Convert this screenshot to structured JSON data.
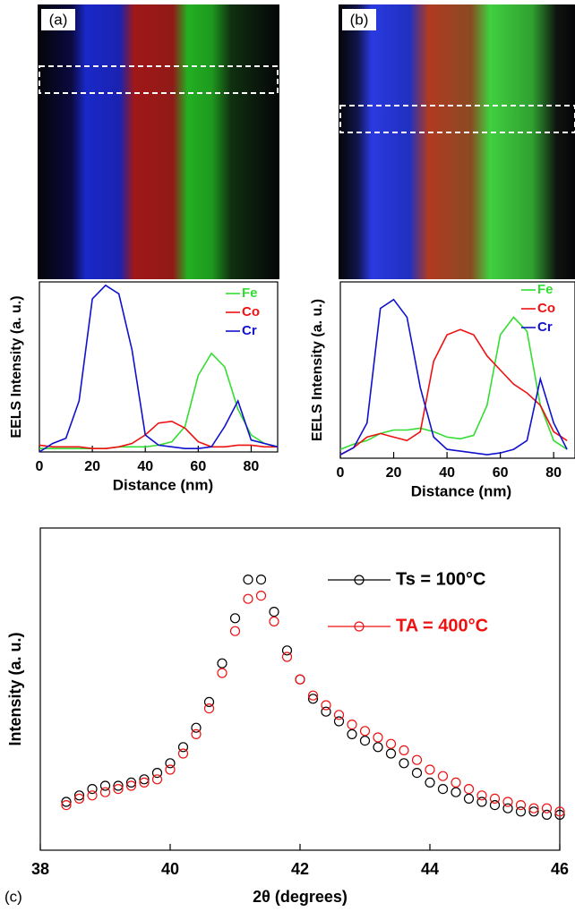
{
  "chart_data": [
    {
      "type": "line",
      "panel_label": "(a)",
      "x_label": "Distance (nm)",
      "y_label": "EELS Intensity (a. u.)",
      "x": [
        0,
        5,
        10,
        15,
        20,
        25,
        30,
        35,
        40,
        45,
        50,
        55,
        60,
        65,
        70,
        75,
        80,
        85,
        90
      ],
      "series": [
        {
          "name": "Fe",
          "color": "#33dd33",
          "values": [
            0.02,
            0.02,
            0.02,
            0.02,
            0.02,
            0.02,
            0.03,
            0.03,
            0.03,
            0.04,
            0.06,
            0.15,
            0.45,
            0.58,
            0.5,
            0.25,
            0.1,
            0.05,
            0.03
          ]
        },
        {
          "name": "Co",
          "color": "#ee1111",
          "values": [
            0.04,
            0.03,
            0.03,
            0.03,
            0.02,
            0.02,
            0.03,
            0.05,
            0.1,
            0.17,
            0.18,
            0.14,
            0.06,
            0.03,
            0.03,
            0.04,
            0.04,
            0.03,
            0.03
          ]
        },
        {
          "name": "Cr",
          "color": "#1111cc",
          "values": [
            0.0,
            0.05,
            0.08,
            0.3,
            0.9,
            0.98,
            0.93,
            0.6,
            0.1,
            0.04,
            0.03,
            0.02,
            0.02,
            0.03,
            0.15,
            0.3,
            0.07,
            0.05,
            0.03
          ]
        }
      ],
      "xlim": [
        0,
        90
      ],
      "xticks": [
        0,
        20,
        40,
        60,
        80
      ],
      "ylim": [
        0,
        1
      ]
    },
    {
      "type": "line",
      "panel_label": "(b)",
      "x_label": "Distance (nm)",
      "y_label": "EELS Intensity (a. u.)",
      "x": [
        0,
        5,
        10,
        15,
        20,
        25,
        30,
        35,
        40,
        45,
        50,
        55,
        60,
        65,
        70,
        75,
        80,
        85
      ],
      "series": [
        {
          "name": "Fe",
          "color": "#33dd33",
          "values": [
            0.05,
            0.08,
            0.1,
            0.14,
            0.16,
            0.16,
            0.17,
            0.15,
            0.12,
            0.11,
            0.13,
            0.3,
            0.7,
            0.8,
            0.72,
            0.3,
            0.1,
            0.05
          ]
        },
        {
          "name": "Co",
          "color": "#ee1111",
          "values": [
            0.02,
            0.06,
            0.12,
            0.14,
            0.12,
            0.1,
            0.15,
            0.55,
            0.7,
            0.73,
            0.7,
            0.58,
            0.5,
            0.42,
            0.37,
            0.3,
            0.15,
            0.1
          ]
        },
        {
          "name": "Cr",
          "color": "#1111cc",
          "values": [
            0.02,
            0.06,
            0.2,
            0.85,
            0.9,
            0.8,
            0.4,
            0.12,
            0.05,
            0.04,
            0.03,
            0.02,
            0.03,
            0.05,
            0.1,
            0.45,
            0.2,
            0.05
          ]
        }
      ],
      "xlim": [
        0,
        88
      ],
      "xticks": [
        0,
        20,
        40,
        60,
        80
      ],
      "ylim": [
        0,
        1
      ]
    },
    {
      "type": "scatter",
      "panel_label": "(c)",
      "x_label": "2θ (degrees)",
      "y_label": "Intensity (a. u.)",
      "x": [
        38.4,
        38.6,
        38.8,
        39.0,
        39.2,
        39.4,
        39.6,
        39.8,
        40.0,
        40.2,
        40.4,
        40.6,
        40.8,
        41.0,
        41.2,
        41.4,
        41.6,
        41.8,
        42.0,
        42.2,
        42.4,
        42.6,
        42.8,
        43.0,
        43.2,
        43.4,
        43.6,
        43.8,
        44.0,
        44.2,
        44.4,
        44.6,
        44.8,
        45.0,
        45.2,
        45.4,
        45.6,
        45.8,
        46.0
      ],
      "series": [
        {
          "name": "Ts = 100°C",
          "color": "#000000",
          "values": [
            0.15,
            0.17,
            0.19,
            0.2,
            0.2,
            0.21,
            0.22,
            0.24,
            0.27,
            0.32,
            0.38,
            0.46,
            0.58,
            0.72,
            0.84,
            0.84,
            0.74,
            0.62,
            0.53,
            0.47,
            0.43,
            0.4,
            0.36,
            0.34,
            0.32,
            0.3,
            0.27,
            0.24,
            0.21,
            0.19,
            0.18,
            0.16,
            0.15,
            0.14,
            0.13,
            0.12,
            0.12,
            0.11,
            0.11
          ]
        },
        {
          "name": "TA = 400°C",
          "color": "#ee1111",
          "values": [
            0.14,
            0.16,
            0.17,
            0.18,
            0.19,
            0.2,
            0.21,
            0.22,
            0.25,
            0.3,
            0.36,
            0.44,
            0.55,
            0.68,
            0.78,
            0.79,
            0.71,
            0.6,
            0.53,
            0.48,
            0.45,
            0.42,
            0.39,
            0.37,
            0.35,
            0.33,
            0.31,
            0.28,
            0.25,
            0.23,
            0.21,
            0.19,
            0.17,
            0.16,
            0.15,
            0.14,
            0.13,
            0.13,
            0.12
          ]
        }
      ],
      "xlim": [
        38,
        46
      ],
      "xticks": [
        38,
        40,
        42,
        44,
        46
      ],
      "ylim": [
        0,
        1
      ]
    }
  ]
}
